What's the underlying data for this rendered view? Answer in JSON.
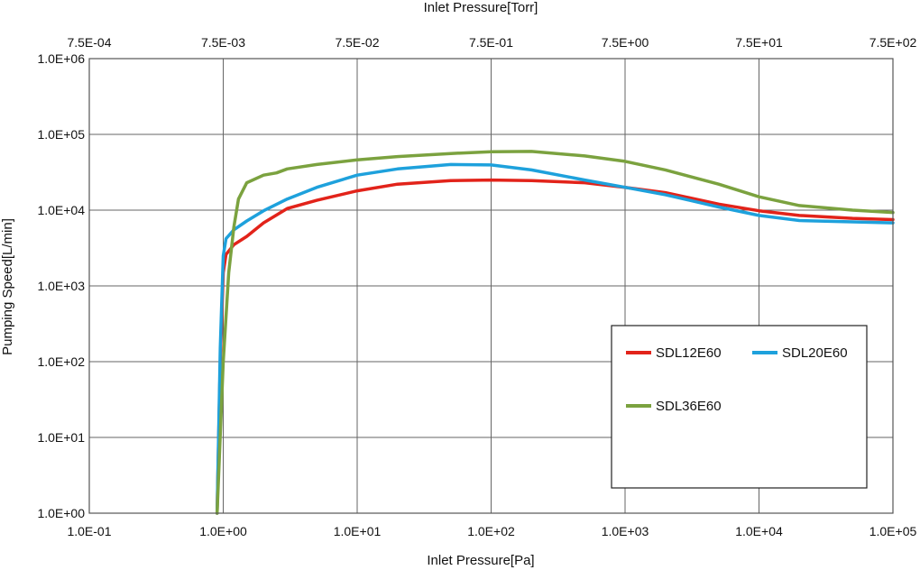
{
  "chart_data": {
    "type": "line",
    "title": "",
    "xlabel": "Inlet Pressure[Pa]",
    "x2label": "Inlet Pressure[Torr]",
    "ylabel": "Pumping Speed[L/min]",
    "x_scale": "log",
    "y_scale": "log",
    "xlim": [
      0.1,
      100000
    ],
    "ylim": [
      1,
      1000000
    ],
    "grid": true,
    "legend_position": "lower-right",
    "x_ticks": [
      {
        "value": 0.1,
        "label": "1.0E-01"
      },
      {
        "value": 1,
        "label": "1.0E+00"
      },
      {
        "value": 10,
        "label": "1.0E+01"
      },
      {
        "value": 100,
        "label": "1.0E+02"
      },
      {
        "value": 1000,
        "label": "1.0E+03"
      },
      {
        "value": 10000,
        "label": "1.0E+04"
      },
      {
        "value": 100000,
        "label": "1.0E+05"
      }
    ],
    "x2_ticks": [
      {
        "value": 0.1,
        "label": "7.5E-04"
      },
      {
        "value": 1,
        "label": "7.5E-03"
      },
      {
        "value": 10,
        "label": "7.5E-02"
      },
      {
        "value": 100,
        "label": "7.5E-01"
      },
      {
        "value": 1000,
        "label": "7.5E+00"
      },
      {
        "value": 10000,
        "label": "7.5E+01"
      },
      {
        "value": 100000,
        "label": "7.5E+02"
      }
    ],
    "y_ticks": [
      {
        "value": 1,
        "label": "1.0E+00"
      },
      {
        "value": 10,
        "label": "1.0E+01"
      },
      {
        "value": 100,
        "label": "1.0E+02"
      },
      {
        "value": 1000,
        "label": "1.0E+03"
      },
      {
        "value": 10000,
        "label": "1.0E+04"
      },
      {
        "value": 100000,
        "label": "1.0E+05"
      },
      {
        "value": 1000000,
        "label": "1.0E+06"
      }
    ],
    "series": [
      {
        "name": "SDL12E60",
        "color": "#e2231a",
        "x": [
          0.9,
          0.95,
          1.0,
          1.05,
          1.2,
          1.5,
          2,
          3,
          5,
          10,
          20,
          50,
          100,
          200,
          500,
          1000,
          2000,
          5000,
          10000,
          20000,
          50000,
          100000
        ],
        "y": [
          1,
          100,
          1500,
          2600,
          3500,
          4500,
          6800,
          10500,
          13500,
          18000,
          22000,
          24500,
          25000,
          24500,
          23000,
          20000,
          17000,
          12000,
          9800,
          8500,
          7800,
          7500
        ]
      },
      {
        "name": "SDL20E60",
        "color": "#1ea1dc",
        "x": [
          0.9,
          0.95,
          1.0,
          1.05,
          1.2,
          1.5,
          2,
          3,
          5,
          10,
          20,
          50,
          100,
          200,
          500,
          1000,
          2000,
          5000,
          10000,
          20000,
          50000,
          100000
        ],
        "y": [
          1,
          150,
          2500,
          4200,
          5500,
          7200,
          9800,
          14000,
          20000,
          29000,
          35000,
          40000,
          39500,
          34000,
          25000,
          20000,
          16000,
          11000,
          8500,
          7300,
          7000,
          6800
        ]
      },
      {
        "name": "SDL36E60",
        "color": "#7ba23f",
        "x": [
          0.9,
          1.0,
          1.1,
          1.2,
          1.3,
          1.5,
          2,
          2.5,
          3,
          5,
          10,
          20,
          50,
          100,
          200,
          500,
          1000,
          2000,
          5000,
          10000,
          20000,
          50000,
          100000
        ],
        "y": [
          1,
          100,
          1500,
          6000,
          14000,
          23000,
          29000,
          31000,
          35000,
          40000,
          46000,
          51000,
          56000,
          59000,
          59500,
          52000,
          44000,
          34000,
          22000,
          15000,
          11500,
          10000,
          9300
        ]
      }
    ]
  }
}
